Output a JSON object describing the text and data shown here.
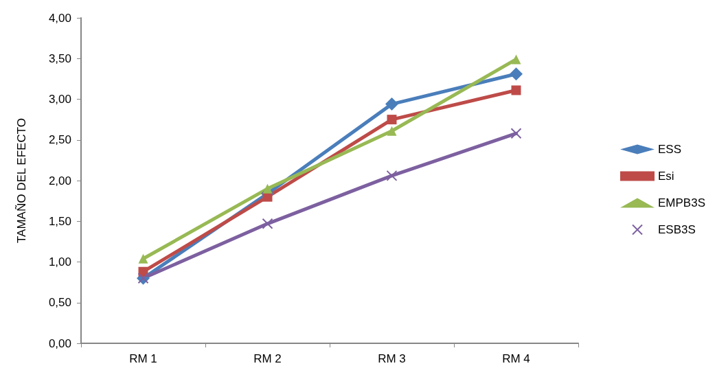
{
  "chart_data": {
    "type": "line",
    "ylabel": "TAMAÑO DEL EFECTO",
    "categories": [
      "RM 1",
      "RM 2",
      "RM 3",
      "RM 4"
    ],
    "series": [
      {
        "name": "ESS",
        "color": "#4a7ebb",
        "marker": "diamond",
        "values": [
          0.8,
          1.84,
          2.94,
          3.31
        ]
      },
      {
        "name": "Esi",
        "color": "#be4b48",
        "marker": "square",
        "values": [
          0.88,
          1.8,
          2.75,
          3.11
        ]
      },
      {
        "name": "EMPB3S",
        "color": "#98b954",
        "marker": "triangle",
        "values": [
          1.04,
          1.9,
          2.61,
          3.49
        ]
      },
      {
        "name": "ESB3S",
        "color": "#7d60a0",
        "marker": "cross",
        "values": [
          0.8,
          1.47,
          2.06,
          2.58
        ]
      }
    ],
    "ylim": [
      0,
      4
    ],
    "yticks": [
      {
        "value": 0,
        "label": "0,00"
      },
      {
        "value": 0.5,
        "label": "0,50"
      },
      {
        "value": 1,
        "label": "1,00"
      },
      {
        "value": 1.5,
        "label": "1,50"
      },
      {
        "value": 2,
        "label": "2,00"
      },
      {
        "value": 2.5,
        "label": "2,50"
      },
      {
        "value": 3,
        "label": "3,00"
      },
      {
        "value": 3.5,
        "label": "3,50"
      },
      {
        "value": 4,
        "label": "4,00"
      }
    ],
    "grid": false,
    "legend": "right"
  }
}
